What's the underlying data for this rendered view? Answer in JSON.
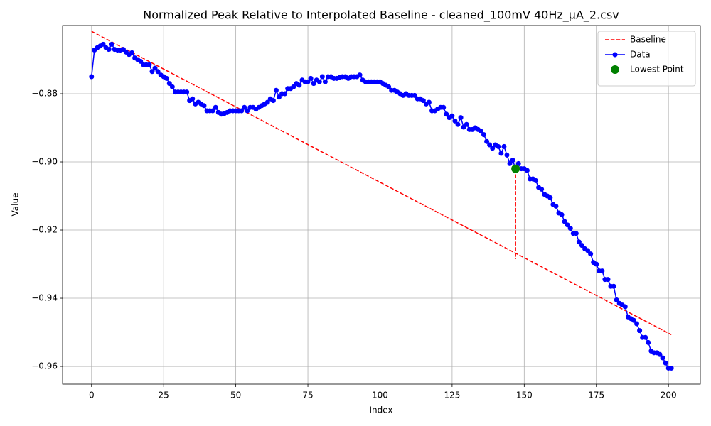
{
  "chart_data": {
    "type": "line",
    "title": "Normalized Peak Relative to Interpolated Baseline - cleaned_100mV 40Hz_µA_2.csv",
    "x_label": "Index",
    "y_label": "Value",
    "xlim": [
      -10.05,
      211.05
    ],
    "ylim": [
      -0.9652,
      -0.86
    ],
    "xticks": [
      0,
      25,
      50,
      75,
      100,
      125,
      150,
      175,
      200
    ],
    "yticks": [
      {
        "value": -0.96,
        "label": "−0.96"
      },
      {
        "value": -0.94,
        "label": "−0.94"
      },
      {
        "value": -0.92,
        "label": "−0.92"
      },
      {
        "value": -0.9,
        "label": "−0.90"
      },
      {
        "value": -0.88,
        "label": "−0.88"
      }
    ],
    "grid": true,
    "legend": "upper right",
    "series": [
      {
        "name": "Baseline",
        "color": "#ff0000",
        "style": "dashed",
        "x": [
          0,
          201
        ],
        "values": [
          -0.8617,
          -0.9507
        ]
      },
      {
        "color": "#ff0000",
        "style": "dashed",
        "x": [
          147,
          147
        ],
        "values": [
          -0.902,
          -0.9285
        ]
      },
      {
        "name": "Data",
        "color": "#0000ff",
        "style": "line-marker",
        "x": [
          0,
          1,
          2,
          3,
          4,
          5,
          6,
          7,
          8,
          9,
          10,
          11,
          12,
          13,
          14,
          15,
          16,
          17,
          18,
          19,
          20,
          21,
          22,
          23,
          24,
          25,
          26,
          27,
          28,
          29,
          30,
          31,
          32,
          33,
          34,
          35,
          36,
          37,
          38,
          39,
          40,
          41,
          42,
          43,
          44,
          45,
          46,
          47,
          48,
          49,
          50,
          51,
          52,
          53,
          54,
          55,
          56,
          57,
          58,
          59,
          60,
          61,
          62,
          63,
          64,
          65,
          66,
          67,
          68,
          69,
          70,
          71,
          72,
          73,
          74,
          75,
          76,
          77,
          78,
          79,
          80,
          81,
          82,
          83,
          84,
          85,
          86,
          87,
          88,
          89,
          90,
          91,
          92,
          93,
          94,
          95,
          96,
          97,
          98,
          99,
          100,
          101,
          102,
          103,
          104,
          105,
          106,
          107,
          108,
          109,
          110,
          111,
          112,
          113,
          114,
          115,
          116,
          117,
          118,
          119,
          120,
          121,
          122,
          123,
          124,
          125,
          126,
          127,
          128,
          129,
          130,
          131,
          132,
          133,
          134,
          135,
          136,
          137,
          138,
          139,
          140,
          141,
          142,
          143,
          144,
          145,
          146,
          147,
          148,
          149,
          150,
          151,
          152,
          153,
          154,
          155,
          156,
          157,
          158,
          159,
          160,
          161,
          162,
          163,
          164,
          165,
          166,
          167,
          168,
          169,
          170,
          171,
          172,
          173,
          174,
          175,
          176,
          177,
          178,
          179,
          180,
          181,
          182,
          183,
          184,
          185,
          186,
          187,
          188,
          189,
          190,
          191,
          192,
          193,
          194,
          195,
          196,
          197,
          198,
          199,
          200,
          201
        ],
        "values": [
          -0.875,
          -0.8672,
          -0.8665,
          -0.866,
          -0.8655,
          -0.8665,
          -0.867,
          -0.8655,
          -0.867,
          -0.8672,
          -0.8672,
          -0.867,
          -0.8678,
          -0.8685,
          -0.868,
          -0.8695,
          -0.87,
          -0.8705,
          -0.8715,
          -0.8715,
          -0.8715,
          -0.8735,
          -0.8725,
          -0.8735,
          -0.8745,
          -0.875,
          -0.8755,
          -0.877,
          -0.878,
          -0.8795,
          -0.8795,
          -0.8795,
          -0.8795,
          -0.8795,
          -0.882,
          -0.8815,
          -0.883,
          -0.8825,
          -0.883,
          -0.8835,
          -0.885,
          -0.885,
          -0.885,
          -0.884,
          -0.8855,
          -0.886,
          -0.8858,
          -0.8855,
          -0.885,
          -0.885,
          -0.885,
          -0.885,
          -0.885,
          -0.884,
          -0.885,
          -0.884,
          -0.884,
          -0.8845,
          -0.884,
          -0.8835,
          -0.883,
          -0.8825,
          -0.8815,
          -0.882,
          -0.879,
          -0.881,
          -0.88,
          -0.88,
          -0.8785,
          -0.8785,
          -0.878,
          -0.877,
          -0.8775,
          -0.876,
          -0.8765,
          -0.8765,
          -0.8755,
          -0.877,
          -0.876,
          -0.8765,
          -0.875,
          -0.8765,
          -0.875,
          -0.875,
          -0.8755,
          -0.8755,
          -0.8752,
          -0.875,
          -0.875,
          -0.8755,
          -0.875,
          -0.875,
          -0.875,
          -0.8745,
          -0.876,
          -0.8765,
          -0.8765,
          -0.8765,
          -0.8765,
          -0.8765,
          -0.8765,
          -0.877,
          -0.8775,
          -0.878,
          -0.879,
          -0.879,
          -0.8795,
          -0.88,
          -0.8805,
          -0.88,
          -0.8805,
          -0.8805,
          -0.8805,
          -0.8815,
          -0.8815,
          -0.882,
          -0.883,
          -0.8825,
          -0.885,
          -0.885,
          -0.8845,
          -0.884,
          -0.884,
          -0.886,
          -0.887,
          -0.8865,
          -0.888,
          -0.889,
          -0.887,
          -0.8898,
          -0.889,
          -0.8905,
          -0.8905,
          -0.89,
          -0.8905,
          -0.891,
          -0.892,
          -0.894,
          -0.895,
          -0.896,
          -0.895,
          -0.8955,
          -0.8975,
          -0.8955,
          -0.898,
          -0.9005,
          -0.8995,
          -0.902,
          -0.9005,
          -0.902,
          -0.902,
          -0.9025,
          -0.905,
          -0.905,
          -0.9055,
          -0.9075,
          -0.908,
          -0.9095,
          -0.91,
          -0.9105,
          -0.9125,
          -0.913,
          -0.915,
          -0.9155,
          -0.9175,
          -0.9185,
          -0.9195,
          -0.921,
          -0.921,
          -0.9235,
          -0.9245,
          -0.9255,
          -0.926,
          -0.927,
          -0.9295,
          -0.93,
          -0.932,
          -0.932,
          -0.9345,
          -0.9345,
          -0.9365,
          -0.9365,
          -0.9405,
          -0.9415,
          -0.942,
          -0.9425,
          -0.9455,
          -0.946,
          -0.9465,
          -0.9475,
          -0.9495,
          -0.9515,
          -0.9515,
          -0.953,
          -0.9555,
          -0.956,
          -0.956,
          -0.9565,
          -0.9575,
          -0.959,
          -0.9605,
          -0.9605
        ]
      },
      {
        "name": "Lowest Point",
        "color": "#008000",
        "style": "big-marker",
        "x": [
          147
        ],
        "values": [
          -0.902
        ]
      }
    ]
  }
}
